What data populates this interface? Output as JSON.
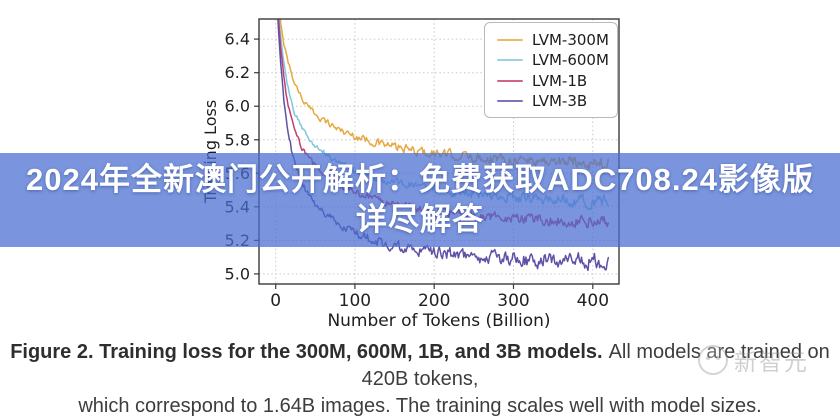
{
  "banner": {
    "line1": "2024年全新澳门公开解析：免费获取ADC708.24影像版",
    "line2": "详尽解答",
    "background_color": "#486ED1",
    "background_opacity": 0.73,
    "text_color": "#ffffff"
  },
  "caption": {
    "bold": "Figure 2. Training loss for the 300M, 600M, 1B, and 3B models.",
    "rest": "All models are trained on 420B tokens,",
    "line2": "which correspond to 1.64B images. The training scales well with model sizes."
  },
  "watermark": {
    "text": "新智元",
    "icon": "face-logo-icon"
  },
  "chart_data": {
    "type": "line",
    "title": "",
    "xlabel": "Number of Tokens (Billion)",
    "ylabel": "Training Loss",
    "xlim": [
      -21,
      433
    ],
    "ylim": [
      4.94,
      6.52
    ],
    "xticks": [
      0,
      100,
      200,
      300,
      400
    ],
    "yticks": [
      5.0,
      5.2,
      5.4,
      5.6,
      5.8,
      6.0,
      6.2,
      6.4
    ],
    "grid": "dotted, both axes",
    "legend_position": "upper right",
    "axis_color": "#3a3a3a",
    "grid_color": "#c9c9c9",
    "tick_label_color": "#222222",
    "series": [
      {
        "name": "LVM-300M",
        "color": "#E6A93F",
        "noise": 0.045,
        "x": [
          1,
          4,
          8,
          15,
          25,
          40,
          60,
          90,
          130,
          180,
          240,
          300,
          360,
          420
        ],
        "y": [
          6.95,
          6.62,
          6.45,
          6.28,
          6.13,
          6.0,
          5.92,
          5.84,
          5.78,
          5.73,
          5.7,
          5.68,
          5.67,
          5.66
        ]
      },
      {
        "name": "LVM-600M",
        "color": "#82C5DF",
        "noise": 0.04,
        "x": [
          1,
          4,
          8,
          15,
          25,
          40,
          60,
          90,
          130,
          180,
          240,
          300,
          360,
          420
        ],
        "y": [
          6.9,
          6.55,
          6.35,
          6.12,
          5.95,
          5.82,
          5.73,
          5.64,
          5.57,
          5.52,
          5.48,
          5.46,
          5.44,
          5.43
        ]
      },
      {
        "name": "LVM-1B",
        "color": "#C13F6E",
        "noise": 0.04,
        "x": [
          1,
          4,
          8,
          15,
          25,
          40,
          60,
          90,
          130,
          180,
          240,
          300,
          360,
          420
        ],
        "y": [
          6.85,
          6.5,
          6.28,
          6.02,
          5.84,
          5.7,
          5.6,
          5.51,
          5.44,
          5.39,
          5.35,
          5.33,
          5.32,
          5.31
        ]
      },
      {
        "name": "LVM-3B",
        "color": "#5F51A5",
        "noise": 0.055,
        "x": [
          1,
          4,
          8,
          15,
          25,
          40,
          60,
          90,
          130,
          180,
          240,
          300,
          360,
          420
        ],
        "y": [
          6.8,
          6.42,
          6.15,
          5.86,
          5.65,
          5.48,
          5.37,
          5.27,
          5.19,
          5.14,
          5.11,
          5.09,
          5.08,
          5.08
        ]
      }
    ]
  }
}
